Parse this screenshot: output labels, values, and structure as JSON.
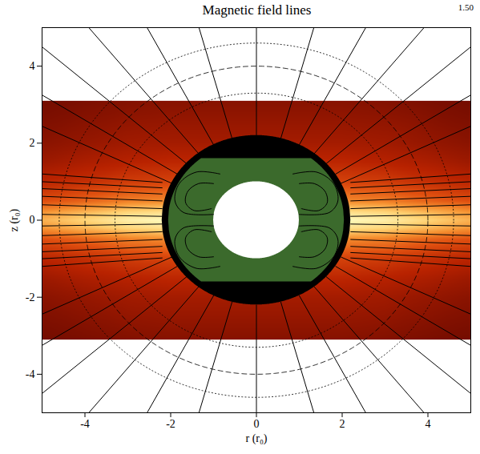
{
  "chart_data": {
    "type": "field_lines",
    "title": "Magnetic field lines",
    "annotation": "1.50",
    "x_label": "r (r₀)",
    "y_label": "z (r₀)",
    "xlim": [
      -5,
      5
    ],
    "ylim": [
      -5,
      5
    ],
    "xticks": [
      -4,
      -2,
      0,
      2,
      4
    ],
    "yticks": [
      -4,
      -2,
      0,
      2,
      4
    ],
    "grid": false,
    "density": {
      "band": [
        -3.1,
        3.1
      ],
      "vlim": [
        0,
        1
      ],
      "x": [
        -5,
        -4,
        -3,
        -2,
        -1,
        0,
        1,
        2,
        3,
        4,
        5
      ],
      "z": [
        -3.1,
        -2,
        -1.5,
        -1,
        -0.5,
        -0.2,
        0,
        0.2,
        0.5,
        1,
        1.5,
        2,
        3.1
      ],
      "values": [
        [
          0.15,
          0.17,
          0.19,
          0.2,
          0.2,
          0.2,
          0.2,
          0.2,
          0.19,
          0.17,
          0.15
        ],
        [
          0.21,
          0.24,
          0.27,
          0.28,
          0.28,
          0.28,
          0.28,
          0.28,
          0.27,
          0.24,
          0.21
        ],
        [
          0.26,
          0.3,
          0.33,
          0.35,
          0.35,
          0.35,
          0.35,
          0.35,
          0.33,
          0.3,
          0.26
        ],
        [
          0.34,
          0.38,
          0.43,
          0.45,
          0.45,
          0.45,
          0.45,
          0.45,
          0.43,
          0.38,
          0.34
        ],
        [
          0.49,
          0.55,
          0.62,
          0.65,
          0.65,
          0.65,
          0.65,
          0.65,
          0.62,
          0.55,
          0.49
        ],
        [
          0.68,
          0.77,
          0.86,
          0.9,
          0.9,
          0.9,
          0.9,
          0.9,
          0.86,
          0.77,
          0.68
        ],
        [
          0.75,
          0.85,
          0.95,
          1,
          1,
          1,
          1,
          1,
          0.95,
          0.85,
          0.75
        ],
        [
          0.68,
          0.77,
          0.86,
          0.9,
          0.9,
          0.9,
          0.9,
          0.9,
          0.86,
          0.77,
          0.68
        ],
        [
          0.49,
          0.55,
          0.62,
          0.65,
          0.65,
          0.65,
          0.65,
          0.65,
          0.62,
          0.55,
          0.49
        ],
        [
          0.34,
          0.38,
          0.43,
          0.45,
          0.45,
          0.45,
          0.45,
          0.45,
          0.43,
          0.38,
          0.34
        ],
        [
          0.26,
          0.3,
          0.33,
          0.35,
          0.35,
          0.35,
          0.35,
          0.35,
          0.33,
          0.3,
          0.26
        ],
        [
          0.21,
          0.24,
          0.27,
          0.28,
          0.28,
          0.28,
          0.28,
          0.28,
          0.27,
          0.24,
          0.21
        ],
        [
          0.15,
          0.17,
          0.19,
          0.2,
          0.2,
          0.2,
          0.2,
          0.2,
          0.19,
          0.17,
          0.15
        ]
      ]
    },
    "circles": [
      {
        "r": 4.6,
        "line_style": "dotted"
      },
      {
        "r": 4.0,
        "line_style": "dashed"
      },
      {
        "r": 3.3,
        "line_style": "dotted"
      }
    ],
    "regions": [
      {
        "r": 2.2,
        "color": "#000000"
      },
      {
        "r": 2.05,
        "zlim": [
          -1.6,
          1.6
        ],
        "color": "#3b6a2c"
      },
      {
        "r": 1.0,
        "color": "#ffffff"
      }
    ],
    "field_lines": {
      "color": "#000000",
      "outer": [
        [
          [
            0,
            2.2
          ],
          [
            0,
            5
          ]
        ],
        [
          [
            0.57,
            2.13
          ],
          [
            1.34,
            5
          ]
        ],
        [
          [
            1.0,
            1.96
          ],
          [
            2.55,
            5
          ]
        ],
        [
          [
            1.35,
            1.73
          ],
          [
            3.91,
            5
          ]
        ],
        [
          [
            1.63,
            1.47
          ],
          [
            5,
            4.5
          ]
        ],
        [
          [
            1.85,
            1.2
          ],
          [
            5,
            3.25
          ]
        ],
        [
          [
            1.98,
            0.96
          ],
          [
            5,
            2.44
          ]
        ],
        [
          [
            -0.57,
            2.13
          ],
          [
            -1.34,
            5
          ]
        ],
        [
          [
            -1.0,
            1.96
          ],
          [
            -2.55,
            5
          ]
        ],
        [
          [
            -1.35,
            1.73
          ],
          [
            -3.91,
            5
          ]
        ],
        [
          [
            -1.63,
            1.47
          ],
          [
            -5,
            4.5
          ]
        ],
        [
          [
            -1.85,
            1.2
          ],
          [
            -5,
            3.25
          ]
        ],
        [
          [
            -1.98,
            0.96
          ],
          [
            -5,
            2.44
          ]
        ],
        [
          [
            0,
            -2.2
          ],
          [
            0,
            -5
          ]
        ],
        [
          [
            0.57,
            -2.13
          ],
          [
            1.34,
            -5
          ]
        ],
        [
          [
            1.0,
            -1.96
          ],
          [
            2.55,
            -5
          ]
        ],
        [
          [
            1.35,
            -1.73
          ],
          [
            3.91,
            -5
          ]
        ],
        [
          [
            1.63,
            -1.47
          ],
          [
            5,
            -4.5
          ]
        ],
        [
          [
            1.85,
            -1.2
          ],
          [
            5,
            -3.25
          ]
        ],
        [
          [
            1.98,
            -0.96
          ],
          [
            5,
            -2.44
          ]
        ],
        [
          [
            -0.57,
            -2.13
          ],
          [
            -1.34,
            -5
          ]
        ],
        [
          [
            -1.0,
            -1.96
          ],
          [
            -2.55,
            -5
          ]
        ],
        [
          [
            -1.35,
            -1.73
          ],
          [
            -3.91,
            -5
          ]
        ],
        [
          [
            -1.63,
            -1.47
          ],
          [
            -5,
            -4.5
          ]
        ],
        [
          [
            -1.85,
            -1.2
          ],
          [
            -5,
            -3.25
          ]
        ],
        [
          [
            -1.98,
            -0.96
          ],
          [
            -5,
            -2.44
          ]
        ],
        [
          [
            2.2,
            0.1
          ],
          [
            5,
            0.15
          ]
        ],
        [
          [
            2.2,
            0.3
          ],
          [
            5,
            0.4
          ]
        ],
        [
          [
            2.2,
            0.5
          ],
          [
            5,
            0.62
          ]
        ],
        [
          [
            2.2,
            0.68
          ],
          [
            5,
            0.82
          ]
        ],
        [
          [
            2.2,
            0.84
          ],
          [
            5,
            1.0
          ]
        ],
        [
          [
            2.2,
            0.98
          ],
          [
            5,
            1.2
          ]
        ],
        [
          [
            2.2,
            -0.1
          ],
          [
            5,
            -0.15
          ]
        ],
        [
          [
            2.2,
            -0.3
          ],
          [
            5,
            -0.4
          ]
        ],
        [
          [
            2.2,
            -0.5
          ],
          [
            5,
            -0.62
          ]
        ],
        [
          [
            2.2,
            -0.68
          ],
          [
            5,
            -0.82
          ]
        ],
        [
          [
            2.2,
            -0.84
          ],
          [
            5,
            -1.0
          ]
        ],
        [
          [
            2.2,
            -0.98
          ],
          [
            5,
            -1.2
          ]
        ],
        [
          [
            -2.2,
            0.1
          ],
          [
            -5,
            0.15
          ]
        ],
        [
          [
            -2.2,
            0.3
          ],
          [
            -5,
            0.4
          ]
        ],
        [
          [
            -2.2,
            0.5
          ],
          [
            -5,
            0.62
          ]
        ],
        [
          [
            -2.2,
            0.68
          ],
          [
            -5,
            0.82
          ]
        ],
        [
          [
            -2.2,
            0.84
          ],
          [
            -5,
            1.0
          ]
        ],
        [
          [
            -2.2,
            0.98
          ],
          [
            -5,
            1.2
          ]
        ],
        [
          [
            -2.2,
            -0.1
          ],
          [
            -5,
            -0.15
          ]
        ],
        [
          [
            -2.2,
            -0.3
          ],
          [
            -5,
            -0.4
          ]
        ],
        [
          [
            -2.2,
            -0.5
          ],
          [
            -5,
            -0.62
          ]
        ],
        [
          [
            -2.2,
            -0.68
          ],
          [
            -5,
            -0.82
          ]
        ],
        [
          [
            -2.2,
            -0.84
          ],
          [
            -5,
            -1.0
          ]
        ],
        [
          [
            -2.2,
            -0.98
          ],
          [
            -5,
            -1.2
          ]
        ]
      ],
      "inner": [
        [
          [
            1.0,
            0.95
          ],
          [
            1.35,
            0.95
          ],
          [
            1.6,
            0.75
          ],
          [
            1.65,
            0.45
          ],
          [
            1.45,
            0.25
          ],
          [
            1.05,
            0.3
          ]
        ],
        [
          [
            0.85,
            1.2
          ],
          [
            1.4,
            1.25
          ],
          [
            1.8,
            0.95
          ],
          [
            1.9,
            0.5
          ],
          [
            1.7,
            0.2
          ],
          [
            1.0,
            0.15
          ]
        ],
        [
          [
            -1.0,
            0.95
          ],
          [
            -1.35,
            0.95
          ],
          [
            -1.6,
            0.75
          ],
          [
            -1.65,
            0.45
          ],
          [
            -1.45,
            0.25
          ],
          [
            -1.05,
            0.3
          ]
        ],
        [
          [
            -0.85,
            1.2
          ],
          [
            -1.4,
            1.25
          ],
          [
            -1.8,
            0.95
          ],
          [
            -1.9,
            0.5
          ],
          [
            -1.7,
            0.2
          ],
          [
            -1.0,
            0.15
          ]
        ],
        [
          [
            1.0,
            -0.95
          ],
          [
            1.35,
            -0.95
          ],
          [
            1.6,
            -0.75
          ],
          [
            1.65,
            -0.45
          ],
          [
            1.45,
            -0.25
          ],
          [
            1.05,
            -0.3
          ]
        ],
        [
          [
            0.85,
            -1.2
          ],
          [
            1.4,
            -1.25
          ],
          [
            1.8,
            -0.95
          ],
          [
            1.9,
            -0.5
          ],
          [
            1.7,
            -0.2
          ],
          [
            1.0,
            -0.15
          ]
        ],
        [
          [
            -1.0,
            -0.95
          ],
          [
            -1.35,
            -0.95
          ],
          [
            -1.6,
            -0.75
          ],
          [
            -1.65,
            -0.45
          ],
          [
            -1.45,
            -0.25
          ],
          [
            -1.05,
            -0.3
          ]
        ],
        [
          [
            -0.85,
            -1.2
          ],
          [
            -1.4,
            -1.25
          ],
          [
            -1.8,
            -0.95
          ],
          [
            -1.9,
            -0.5
          ],
          [
            -1.7,
            -0.2
          ],
          [
            -1.0,
            -0.15
          ]
        ]
      ]
    }
  }
}
